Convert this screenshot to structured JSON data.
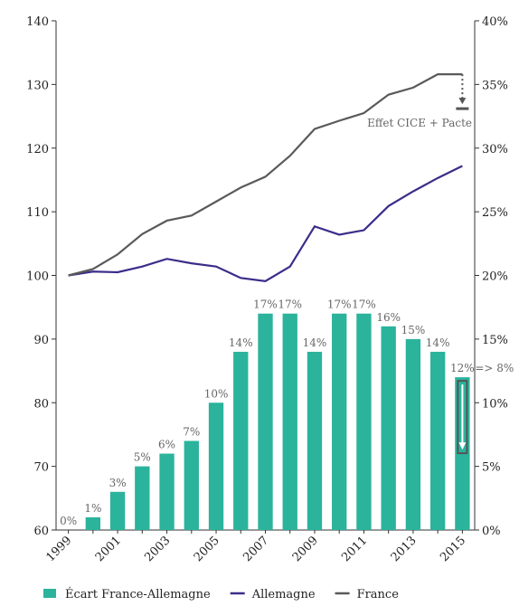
{
  "chart_data": {
    "type": "combo",
    "categories": [
      "1999",
      null,
      "2001",
      null,
      "2003",
      null,
      "2005",
      null,
      "2007",
      null,
      "2009",
      null,
      "2011",
      null,
      "2013",
      null,
      "2015"
    ],
    "series": [
      {
        "name": "Écart France-Allemagne",
        "type": "bar",
        "axis": "y2",
        "color": "#2bb39c",
        "values": [
          0,
          1,
          3,
          5,
          6,
          7,
          10,
          14,
          17,
          17,
          14,
          17,
          17,
          16,
          15,
          14,
          12
        ],
        "value_labels": [
          "0%",
          "1%",
          "3%",
          "5%",
          "6%",
          "7%",
          "10%",
          "14%",
          "17%",
          "17%",
          "14%",
          "17%",
          "17%",
          "16%",
          "15%",
          "14%",
          "12%"
        ]
      },
      {
        "name": "Allemagne",
        "type": "line",
        "color": "#3b2d8a",
        "values": [
          100,
          100.6,
          100.5,
          101.4,
          102.6,
          101.9,
          101.4,
          99.6,
          99.1,
          101.4,
          107.7,
          106.4,
          107.1,
          110.9,
          113.2,
          115.3,
          117.2
        ]
      },
      {
        "name": "France",
        "type": "line",
        "color": "#5a5a5a",
        "values": [
          100,
          101,
          103.3,
          106.5,
          108.6,
          109.4,
          111.6,
          113.8,
          115.5,
          118.8,
          123,
          124.3,
          125.5,
          128.4,
          129.5,
          131.6,
          131.6
        ]
      }
    ],
    "ylim": [
      60,
      140
    ],
    "yticks": [
      60,
      70,
      80,
      90,
      100,
      110,
      120,
      130,
      140
    ],
    "y2lim": [
      0,
      40
    ],
    "y2ticks": [
      {
        "value": 0,
        "label": "0%"
      },
      {
        "value": 5,
        "label": "5%"
      },
      {
        "value": 10,
        "label": "10%"
      },
      {
        "value": 15,
        "label": "15%"
      },
      {
        "value": 20,
        "label": "20%"
      },
      {
        "value": 25,
        "label": "25%"
      },
      {
        "value": 30,
        "label": "30%"
      },
      {
        "value": 35,
        "label": "35%"
      },
      {
        "value": 40,
        "label": "40%"
      }
    ],
    "annotations": [
      "Effet CICE + Pacte",
      "=> 8%"
    ]
  }
}
